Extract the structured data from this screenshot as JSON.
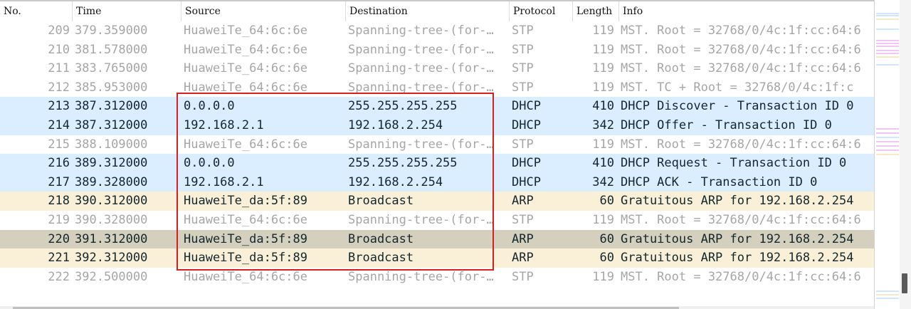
{
  "columns": {
    "no": "No.",
    "time": "Time",
    "source": "Source",
    "destination": "Destination",
    "protocol": "Protocol",
    "length": "Length",
    "info": "Info"
  },
  "packets": [
    {
      "no": "209",
      "time": "379.359000",
      "source": "HuaweiTe_64:6c:6e",
      "destination": "Spanning-tree-(for-…",
      "protocol": "STP",
      "length": "119",
      "info": "MST. Root = 32768/0/4c:1f:cc:64:6",
      "style": "stp"
    },
    {
      "no": "210",
      "time": "381.578000",
      "source": "HuaweiTe_64:6c:6e",
      "destination": "Spanning-tree-(for-…",
      "protocol": "STP",
      "length": "119",
      "info": "MST. Root = 32768/0/4c:1f:cc:64:6",
      "style": "stp"
    },
    {
      "no": "211",
      "time": "383.765000",
      "source": "HuaweiTe_64:6c:6e",
      "destination": "Spanning-tree-(for-…",
      "protocol": "STP",
      "length": "119",
      "info": "MST. Root = 32768/0/4c:1f:cc:64:6",
      "style": "stp"
    },
    {
      "no": "212",
      "time": "385.953000",
      "source": "HuaweiTe_64:6c:6e",
      "destination": "Spanning-tree-(for-…",
      "protocol": "STP",
      "length": "119",
      "info": "MST. TC + Root = 32768/0/4c:1f:c",
      "style": "stp"
    },
    {
      "no": "213",
      "time": "387.312000",
      "source": "0.0.0.0",
      "destination": "255.255.255.255",
      "protocol": "DHCP",
      "length": "410",
      "info": "DHCP Discover - Transaction ID 0",
      "style": "dhcp"
    },
    {
      "no": "214",
      "time": "387.312000",
      "source": "192.168.2.1",
      "destination": "192.168.2.254",
      "protocol": "DHCP",
      "length": "342",
      "info": "DHCP Offer    - Transaction ID 0",
      "style": "dhcp"
    },
    {
      "no": "215",
      "time": "388.109000",
      "source": "HuaweiTe_64:6c:6e",
      "destination": "Spanning-tree-(for-…",
      "protocol": "STP",
      "length": "119",
      "info": "MST. Root = 32768/0/4c:1f:cc:64:6",
      "style": "stp"
    },
    {
      "no": "216",
      "time": "389.312000",
      "source": "0.0.0.0",
      "destination": "255.255.255.255",
      "protocol": "DHCP",
      "length": "410",
      "info": "DHCP Request  - Transaction ID 0",
      "style": "dhcp"
    },
    {
      "no": "217",
      "time": "389.328000",
      "source": "192.168.2.1",
      "destination": "192.168.2.254",
      "protocol": "DHCP",
      "length": "342",
      "info": "DHCP ACK      - Transaction ID 0",
      "style": "dhcp"
    },
    {
      "no": "218",
      "time": "390.312000",
      "source": "HuaweiTe_da:5f:89",
      "destination": "Broadcast",
      "protocol": "ARP",
      "length": "60",
      "info": "Gratuitous ARP for 192.168.2.254",
      "style": "arp"
    },
    {
      "no": "219",
      "time": "390.328000",
      "source": "HuaweiTe_64:6c:6e",
      "destination": "Spanning-tree-(for-…",
      "protocol": "STP",
      "length": "119",
      "info": "MST. Root = 32768/0/4c:1f:cc:64:6",
      "style": "stp"
    },
    {
      "no": "220",
      "time": "391.312000",
      "source": "HuaweiTe_da:5f:89",
      "destination": "Broadcast",
      "protocol": "ARP",
      "length": "60",
      "info": "Gratuitous ARP for 192.168.2.254",
      "style": "arp-sel"
    },
    {
      "no": "221",
      "time": "392.312000",
      "source": "HuaweiTe_da:5f:89",
      "destination": "Broadcast",
      "protocol": "ARP",
      "length": "60",
      "info": "Gratuitous ARP for 192.168.2.254",
      "style": "arp"
    },
    {
      "no": "222",
      "time": "392.500000",
      "source": "HuaweiTe_64:6c:6e",
      "destination": "Spanning-tree-(for-…",
      "protocol": "STP",
      "length": "119",
      "info": "MST. Root = 32768/0/4c:1f:cc:64:6",
      "style": "stp"
    }
  ],
  "colors": {
    "stp_bg": "#ffffff",
    "stp_text": "#a6a6a6",
    "dhcp_bg": "#daeeff",
    "arp_bg": "#faf0d7",
    "arp_selected_bg": "#d5cfbd",
    "highlight": "#d42020"
  }
}
